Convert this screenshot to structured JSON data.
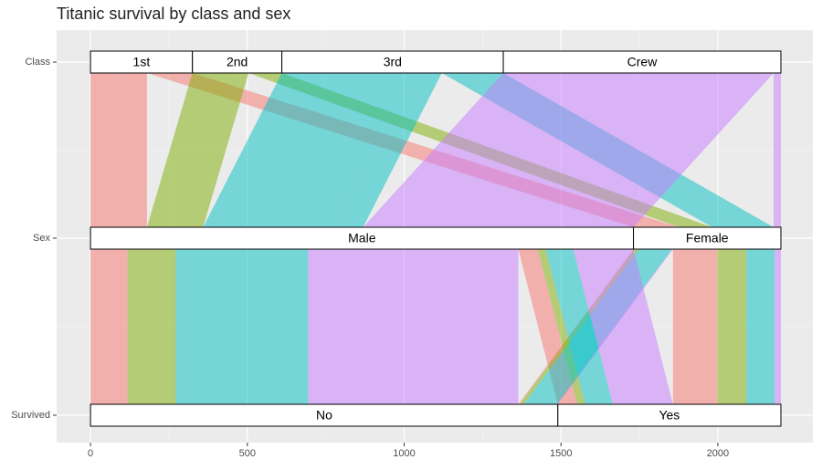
{
  "chart_data": {
    "type": "alluvial",
    "title": "Titanic survival by class and sex",
    "axes": [
      "Class",
      "Sex",
      "Survived"
    ],
    "levels": [
      [
        "1st",
        "2nd",
        "3rd",
        "Crew"
      ],
      [
        "Male",
        "Female"
      ],
      [
        "No",
        "Yes"
      ]
    ],
    "colors": [
      "#F8766D",
      "#7CAE00",
      "#00BFC4",
      "#C77CFF"
    ],
    "flows": [
      {
        "path": [
          0,
          0,
          0
        ],
        "value": 118
      },
      {
        "path": [
          0,
          0,
          1
        ],
        "value": 62
      },
      {
        "path": [
          0,
          1,
          0
        ],
        "value": 4
      },
      {
        "path": [
          0,
          1,
          1
        ],
        "value": 141
      },
      {
        "path": [
          1,
          0,
          0
        ],
        "value": 154
      },
      {
        "path": [
          1,
          0,
          1
        ],
        "value": 25
      },
      {
        "path": [
          1,
          1,
          0
        ],
        "value": 13
      },
      {
        "path": [
          1,
          1,
          1
        ],
        "value": 93
      },
      {
        "path": [
          2,
          0,
          0
        ],
        "value": 422
      },
      {
        "path": [
          2,
          0,
          1
        ],
        "value": 88
      },
      {
        "path": [
          2,
          1,
          0
        ],
        "value": 106
      },
      {
        "path": [
          2,
          1,
          1
        ],
        "value": 90
      },
      {
        "path": [
          3,
          0,
          0
        ],
        "value": 670
      },
      {
        "path": [
          3,
          0,
          1
        ],
        "value": 192
      },
      {
        "path": [
          3,
          1,
          0
        ],
        "value": 3
      },
      {
        "path": [
          3,
          1,
          1
        ],
        "value": 20
      }
    ],
    "xlim": [
      -108,
      2303
    ],
    "xticks": [
      0,
      500,
      1000,
      1500,
      2000
    ],
    "grid": true
  }
}
